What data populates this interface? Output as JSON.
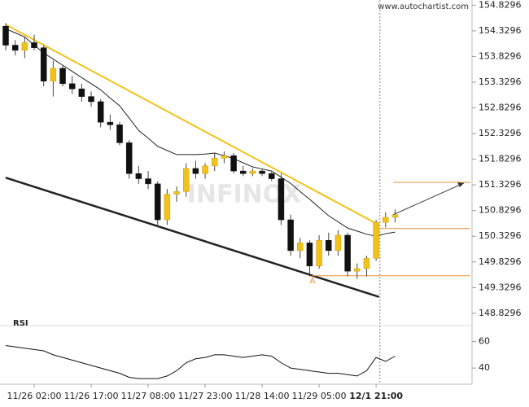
{
  "chart_data": {
    "type": "candlestick",
    "source": "www.autochartist.com",
    "watermark": "INFINOX",
    "annotation": "A",
    "categories": [
      null,
      null,
      null,
      "11/26 02:00",
      null,
      null,
      null,
      null,
      null,
      "11/26 17:00",
      null,
      null,
      null,
      null,
      null,
      "11/27 08:00",
      null,
      null,
      null,
      null,
      null,
      "11/27 23:00",
      null,
      null,
      null,
      null,
      null,
      "11/28 14:00",
      null,
      null,
      null,
      null,
      null,
      "11/29 05:00",
      null,
      null,
      null,
      null,
      null,
      "12/1 21:00",
      null,
      null
    ],
    "open": [
      154.42,
      154.05,
      153.95,
      154.1,
      154.0,
      153.35,
      153.6,
      153.3,
      153.2,
      153.05,
      152.95,
      152.55,
      152.5,
      152.15,
      151.55,
      151.45,
      151.35,
      150.65,
      151.15,
      151.2,
      151.65,
      151.55,
      151.7,
      151.85,
      151.9,
      151.6,
      151.55,
      151.6,
      151.55,
      151.45,
      150.65,
      150.05,
      150.2,
      149.75,
      150.25,
      150.05,
      150.35,
      149.65,
      149.7,
      149.9,
      150.6,
      150.7
    ],
    "high": [
      154.48,
      154.15,
      154.2,
      154.25,
      154.05,
      153.75,
      153.65,
      153.45,
      153.3,
      153.15,
      153.0,
      152.7,
      152.55,
      152.2,
      151.7,
      151.6,
      151.4,
      151.25,
      151.3,
      151.75,
      151.8,
      151.75,
      151.95,
      151.98,
      151.95,
      151.7,
      151.65,
      151.65,
      151.6,
      151.55,
      150.75,
      150.3,
      150.25,
      150.35,
      150.4,
      150.45,
      150.4,
      149.8,
      149.95,
      150.65,
      150.8,
      150.85
    ],
    "low": [
      153.95,
      153.85,
      153.8,
      153.95,
      153.25,
      153.05,
      153.25,
      153.1,
      152.95,
      152.85,
      152.45,
      152.4,
      152.1,
      151.45,
      151.35,
      151.25,
      150.5,
      150.55,
      151.0,
      151.1,
      151.45,
      151.45,
      151.6,
      151.75,
      151.55,
      151.5,
      151.5,
      151.5,
      151.4,
      150.55,
      149.95,
      149.9,
      149.55,
      149.7,
      149.95,
      149.95,
      149.55,
      149.5,
      149.55,
      149.85,
      150.5,
      150.6
    ],
    "close": [
      154.05,
      153.95,
      154.1,
      154.0,
      153.35,
      153.6,
      153.3,
      153.2,
      153.05,
      152.95,
      152.55,
      152.5,
      152.15,
      151.55,
      151.45,
      151.35,
      150.65,
      151.15,
      151.2,
      151.65,
      151.55,
      151.7,
      151.85,
      151.9,
      151.6,
      151.55,
      151.6,
      151.55,
      151.45,
      150.65,
      150.05,
      150.2,
      149.75,
      150.25,
      150.05,
      150.35,
      149.65,
      149.7,
      149.9,
      150.6,
      150.7,
      150.75
    ],
    "up_color": "#f2c21b",
    "down_color": "#111111",
    "moving_average": [
      154.37,
      154.29,
      154.21,
      154.05,
      153.9,
      153.78,
      153.66,
      153.54,
      153.42,
      153.3,
      153.18,
      153.02,
      152.87,
      152.63,
      152.39,
      152.24,
      152.08,
      152.0,
      151.92,
      151.92,
      151.92,
      151.93,
      151.95,
      151.9,
      151.84,
      151.76,
      151.68,
      151.64,
      151.6,
      151.48,
      151.36,
      151.2,
      151.05,
      150.89,
      150.73,
      150.61,
      150.49,
      150.43,
      150.37,
      150.33,
      150.38,
      150.41
    ],
    "resistance_line": [
      154.45,
      150.55
    ],
    "support_line": [
      151.47,
      149.15
    ],
    "levels": [
      151.38,
      150.48,
      149.56
    ],
    "ylim": [
      148.59,
      154.93
    ],
    "yticks": [
      154.8296,
      154.3296,
      153.8296,
      153.3296,
      152.8296,
      152.3296,
      151.8296,
      151.3296,
      150.8296,
      150.3296,
      149.8296,
      149.3296,
      148.8296
    ],
    "rsi": {
      "title": "RSI",
      "values": [
        57,
        56,
        55,
        54,
        53,
        50,
        48,
        46,
        44,
        42,
        40,
        38,
        36,
        33,
        32,
        32,
        32,
        34,
        38,
        44,
        47,
        48,
        50,
        50,
        49,
        48,
        49,
        50,
        49,
        44,
        40,
        39,
        38,
        37,
        36,
        36,
        35,
        34,
        38,
        48,
        45,
        49
      ],
      "ylim": [
        29,
        69
      ],
      "yticks": [
        60,
        40
      ]
    }
  }
}
